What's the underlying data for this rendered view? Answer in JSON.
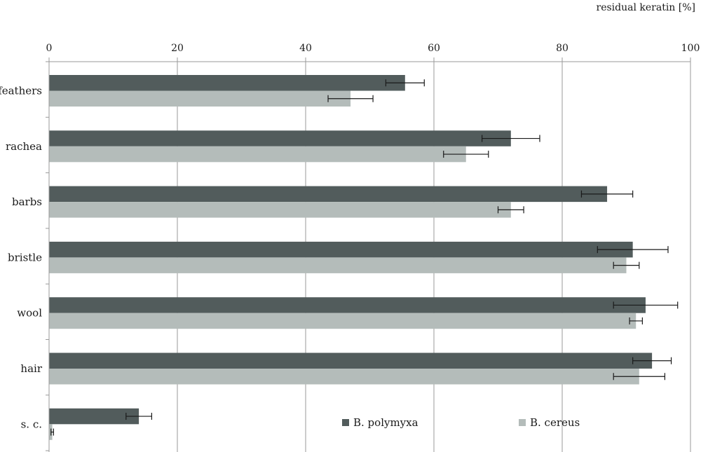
{
  "chart_data": {
    "type": "bar",
    "orientation": "horizontal",
    "xlabel": "residual keratin [%]",
    "xlim": [
      0,
      100
    ],
    "xticks": [
      0,
      20,
      40,
      60,
      80,
      100
    ],
    "grid": true,
    "legend_position": "bottom-right",
    "categories": [
      "feathers",
      "rachea",
      "barbs",
      "bristle",
      "wool",
      "hair",
      "s. c."
    ],
    "series": [
      {
        "name": "B. polymyxa",
        "color": "#525c5c",
        "values": [
          55.5,
          72,
          87,
          91,
          93,
          94,
          14
        ],
        "errors": [
          3,
          4.5,
          4,
          5.5,
          5,
          3,
          2
        ]
      },
      {
        "name": "B. cereus",
        "color": "#b4bcba",
        "values": [
          47,
          65,
          72,
          90,
          91.5,
          92,
          0.5
        ],
        "errors": [
          3.5,
          3.5,
          2,
          2,
          1,
          4,
          0.2
        ]
      }
    ]
  }
}
